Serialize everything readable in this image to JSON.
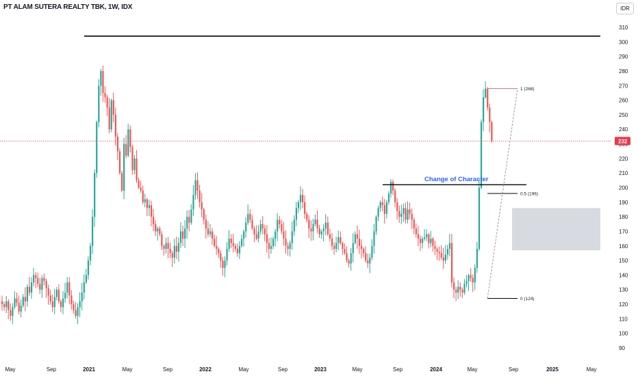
{
  "header": {
    "title": "PT ALAM SUTERA REALTY TBK, 1W, IDX",
    "currency": "IDR"
  },
  "colors": {
    "up": "#26a69a",
    "down": "#ef5350",
    "last_price_bg": "#f23645",
    "zone": "#d1d4dc",
    "annotation": "#2962ff"
  },
  "chart_data": {
    "type": "candlestick",
    "y_axis": {
      "ticks": [
        90,
        100,
        110,
        120,
        130,
        140,
        150,
        160,
        170,
        180,
        190,
        200,
        210,
        220,
        230,
        240,
        250,
        260,
        270,
        280,
        290,
        300,
        310
      ],
      "range": [
        86,
        313
      ]
    },
    "x_axis": {
      "ticks": [
        {
          "label": "May",
          "bold": false
        },
        {
          "label": "Sep",
          "bold": false
        },
        {
          "label": "2021",
          "bold": true
        },
        {
          "label": "May",
          "bold": false
        },
        {
          "label": "Sep",
          "bold": false
        },
        {
          "label": "2022",
          "bold": true
        },
        {
          "label": "May",
          "bold": false
        },
        {
          "label": "Sep",
          "bold": false
        },
        {
          "label": "2023",
          "bold": true
        },
        {
          "label": "May",
          "bold": false
        },
        {
          "label": "Sep",
          "bold": false
        },
        {
          "label": "2024",
          "bold": true
        },
        {
          "label": "May",
          "bold": false
        },
        {
          "label": "Sep",
          "bold": false
        },
        {
          "label": "2025",
          "bold": true
        },
        {
          "label": "May",
          "bold": false
        }
      ]
    },
    "last_price": 232,
    "resistance_level": 304,
    "change_of_character": {
      "label": "Change of Character",
      "level": 202
    },
    "fib_levels": [
      {
        "label": "1 (268)",
        "value": 268
      },
      {
        "label": "0.5 (196)",
        "value": 196
      },
      {
        "label": "0 (124)",
        "value": 124
      }
    ],
    "demand_zone": [
      157,
      186
    ],
    "weekly_closes": [
      120,
      118,
      122,
      116,
      112,
      118,
      124,
      121,
      115,
      119,
      125,
      122,
      132,
      128,
      135,
      140,
      138,
      134,
      130,
      138,
      136,
      131,
      126,
      122,
      118,
      125,
      130,
      122,
      118,
      124,
      128,
      135,
      126,
      120,
      116,
      112,
      118,
      122,
      128,
      135,
      140,
      150,
      160,
      180,
      210,
      245,
      270,
      280,
      265,
      262,
      255,
      240,
      260,
      250,
      235,
      225,
      210,
      198,
      230,
      222,
      240,
      228,
      212,
      220,
      205,
      200,
      198,
      190,
      192,
      186,
      188,
      180,
      175,
      170,
      172,
      168,
      160,
      158,
      162,
      158,
      155,
      152,
      160,
      156,
      162,
      170,
      165,
      172,
      180,
      176,
      185,
      195,
      205,
      198,
      190,
      185,
      178,
      172,
      168,
      170,
      165,
      160,
      158,
      155,
      150,
      145,
      150,
      158,
      165,
      162,
      160,
      158,
      155,
      160,
      165,
      170,
      176,
      182,
      178,
      172,
      168,
      165,
      170,
      175,
      172,
      168,
      162,
      158,
      160,
      165,
      170,
      178,
      175,
      170,
      165,
      160,
      158,
      162,
      170,
      178,
      186,
      190,
      195,
      190,
      182,
      178,
      172,
      170,
      175,
      178,
      172,
      168,
      170,
      172,
      176,
      168,
      165,
      160,
      158,
      162,
      166,
      162,
      158,
      155,
      150,
      148,
      155,
      162,
      168,
      165,
      160,
      158,
      155,
      150,
      148,
      152,
      160,
      170,
      180,
      186,
      190,
      188,
      182,
      190,
      196,
      204,
      198,
      190,
      184,
      180,
      182,
      186,
      178,
      185,
      182,
      178,
      172,
      168,
      165,
      162,
      165,
      166,
      168,
      162,
      165,
      160,
      158,
      156,
      155,
      152,
      150,
      154,
      158,
      162,
      135,
      130,
      128,
      132,
      130,
      128,
      134,
      136,
      140,
      138,
      135,
      145,
      158,
      200,
      245,
      262,
      268,
      255,
      245,
      232
    ]
  }
}
